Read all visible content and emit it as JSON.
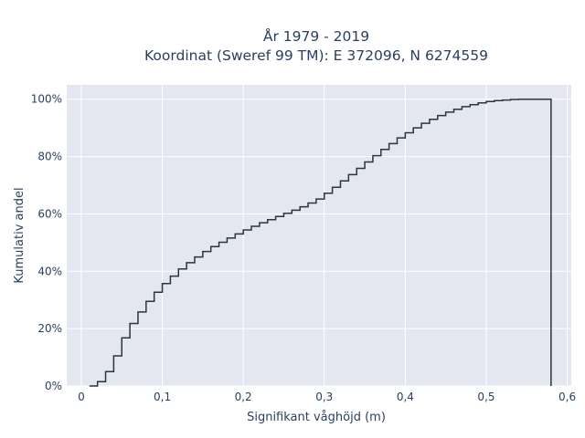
{
  "chart_data": {
    "type": "line",
    "line_shape": "step",
    "title_lines": [
      "År 1979 - 2019",
      "Koordinat (Sweref 99 TM): E 372096, N 6274559"
    ],
    "xlabel": "Signifikant våghöjd (m)",
    "ylabel": "Kumulativ andel",
    "xlim": [
      -0.018,
      0.605
    ],
    "ylim": [
      0,
      1.05
    ],
    "x_ticks": [
      0,
      0.1,
      0.2,
      0.3,
      0.4,
      0.5,
      0.6
    ],
    "x_tick_labels": [
      "0",
      "0,1",
      "0,2",
      "0,3",
      "0,4",
      "0,5",
      "0,6"
    ],
    "y_ticks": [
      0,
      0.2,
      0.4,
      0.6,
      0.8,
      1.0
    ],
    "y_tick_labels": [
      "0%",
      "20%",
      "40%",
      "60%",
      "80%",
      "100%"
    ],
    "grid": true,
    "line_color": "#2a3442",
    "plot_background": "#e5e7f0",
    "series": [
      {
        "x": [
          0.01,
          0.02,
          0.03,
          0.04,
          0.05,
          0.06,
          0.07,
          0.08,
          0.09,
          0.1,
          0.11,
          0.12,
          0.13,
          0.14,
          0.15,
          0.16,
          0.17,
          0.18,
          0.19,
          0.2,
          0.21,
          0.22,
          0.23,
          0.24,
          0.25,
          0.26,
          0.27,
          0.28,
          0.29,
          0.3,
          0.31,
          0.32,
          0.33,
          0.34,
          0.35,
          0.36,
          0.37,
          0.38,
          0.39,
          0.4,
          0.41,
          0.42,
          0.43,
          0.44,
          0.45,
          0.46,
          0.47,
          0.48,
          0.49,
          0.5,
          0.51,
          0.52,
          0.53,
          0.54,
          0.55,
          0.56,
          0.57,
          0.58
        ],
        "y": [
          0.0,
          0.015,
          0.05,
          0.105,
          0.168,
          0.218,
          0.258,
          0.295,
          0.327,
          0.357,
          0.383,
          0.408,
          0.43,
          0.45,
          0.469,
          0.486,
          0.501,
          0.516,
          0.53,
          0.544,
          0.557,
          0.569,
          0.58,
          0.591,
          0.602,
          0.613,
          0.625,
          0.638,
          0.652,
          0.672,
          0.693,
          0.715,
          0.737,
          0.759,
          0.781,
          0.803,
          0.825,
          0.845,
          0.865,
          0.883,
          0.9,
          0.916,
          0.93,
          0.943,
          0.955,
          0.965,
          0.974,
          0.981,
          0.987,
          0.992,
          0.995,
          0.997,
          0.999,
          1.0,
          1.0,
          1.0,
          1.0,
          0.0
        ]
      }
    ]
  }
}
